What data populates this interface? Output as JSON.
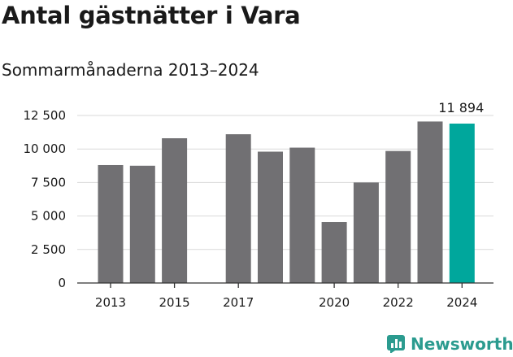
{
  "title": "Antal gästnätter i Vara",
  "subtitle": "Sommarmånaderna 2013–2024",
  "brand": {
    "name": "Newsworthy",
    "icon": "bar-chart-icon",
    "color": "#2b9b8f"
  },
  "colors": {
    "bar": "#717073",
    "highlight": "#00a79c",
    "grid": "#d9d9d9",
    "axis": "#333333"
  },
  "chart_data": {
    "type": "bar",
    "title": "Antal gästnätter i Vara",
    "subtitle": "Sommarmånaderna 2013–2024",
    "xlabel": "",
    "ylabel": "",
    "categories": [
      "2013",
      "2014",
      "2015",
      "2016",
      "2017",
      "2018",
      "2019",
      "2020",
      "2021",
      "2022",
      "2023",
      "2024"
    ],
    "x_tick_labels": [
      "2013",
      "2015",
      "2017",
      "2020",
      "2022",
      "2024"
    ],
    "values": [
      8800,
      8750,
      10800,
      null,
      11100,
      9800,
      10100,
      4550,
      7500,
      9850,
      12050,
      11894
    ],
    "highlight_category": "2024",
    "data_labels": [
      {
        "category": "2024",
        "text": "11 894"
      }
    ],
    "ylim": [
      0,
      12500
    ],
    "y_ticks": [
      0,
      2500,
      5000,
      7500,
      10000,
      12500
    ],
    "y_tick_labels": [
      "0",
      "2 500",
      "5 000",
      "7 500",
      "10 000",
      "12 500"
    ],
    "grid": true,
    "legend": "none"
  }
}
